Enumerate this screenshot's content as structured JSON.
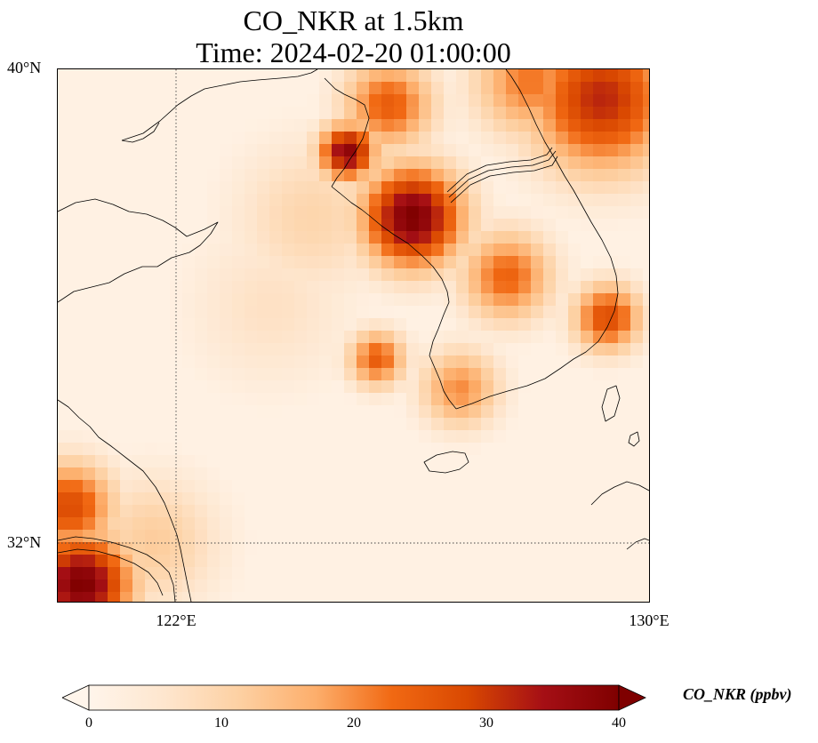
{
  "title_line1": "CO_NKR at 1.5km",
  "title_line2": "Time: 2024-02-20 01:00:00",
  "lat_labels": [
    "40°N",
    "32°N"
  ],
  "lon_labels": [
    "122°E",
    "130°E"
  ],
  "colorbar": {
    "label": "CO_NKR (ppbv)",
    "min": 0,
    "max": 40,
    "ticks": [
      "0",
      "10",
      "20",
      "30",
      "40"
    ],
    "colors": [
      "#fff5eb",
      "#fee6ce",
      "#fdd0a2",
      "#fdae6b",
      "#f16913",
      "#d94801",
      "#a50f15",
      "#7f0000"
    ],
    "extend": "both"
  },
  "map": {
    "extent": {
      "lon_min": 120,
      "lon_max": 130,
      "lat_min": 31,
      "lat_max": 40
    },
    "gridlines": {
      "lon": [
        122
      ],
      "lat": [
        32
      ]
    },
    "plumes": [
      {
        "lon": 126.0,
        "lat": 37.5,
        "value": 40,
        "spread": 0.9
      },
      {
        "lon": 124.9,
        "lat": 38.6,
        "value": 38,
        "spread": 0.5
      },
      {
        "lon": 125.6,
        "lat": 39.4,
        "value": 25,
        "spread": 0.8
      },
      {
        "lon": 129.2,
        "lat": 39.5,
        "value": 32,
        "spread": 1.3
      },
      {
        "lon": 128.0,
        "lat": 39.8,
        "value": 22,
        "spread": 1.0
      },
      {
        "lon": 127.6,
        "lat": 36.5,
        "value": 24,
        "spread": 0.8
      },
      {
        "lon": 129.3,
        "lat": 35.8,
        "value": 28,
        "spread": 0.6
      },
      {
        "lon": 125.4,
        "lat": 35.1,
        "value": 25,
        "spread": 0.5
      },
      {
        "lon": 126.8,
        "lat": 34.6,
        "value": 20,
        "spread": 0.7
      },
      {
        "lon": 120.4,
        "lat": 31.3,
        "value": 40,
        "spread": 0.9
      },
      {
        "lon": 120.2,
        "lat": 32.6,
        "value": 28,
        "spread": 0.8
      },
      {
        "lon": 121.6,
        "lat": 32.0,
        "value": 12,
        "spread": 1.2
      },
      {
        "lon": 124.3,
        "lat": 37.5,
        "value": 10,
        "spread": 1.4
      },
      {
        "lon": 123.6,
        "lat": 36.0,
        "value": 7,
        "spread": 1.5
      }
    ]
  }
}
